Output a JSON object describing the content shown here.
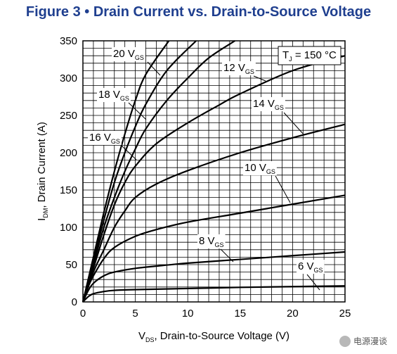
{
  "figure": {
    "title": "Figure 3 • Drain Current vs. Drain-to-Source Voltage",
    "watermark": "电源漫谈"
  },
  "chart_data": {
    "type": "line",
    "title": "Figure 3 • Drain Current vs. Drain-to-Source Voltage",
    "xlabel": {
      "main": "V",
      "sub": "DS",
      "rest": ", Drain-to-Source Voltage (V)"
    },
    "ylabel": {
      "main": "I",
      "sub": "DM",
      "rest": ", Drain Current (A)"
    },
    "xlim": [
      0,
      25
    ],
    "ylim": [
      0,
      350
    ],
    "xticks": [
      0,
      5,
      10,
      15,
      20,
      25
    ],
    "yticks": [
      0,
      50,
      100,
      150,
      200,
      250,
      300,
      350
    ],
    "grid": true,
    "annotation": {
      "main": "T",
      "sub": "J",
      "rest": " = 150 °C",
      "position": "top-right"
    },
    "series": [
      {
        "label": "6",
        "label_sub": "GS",
        "x": [
          0,
          0.5,
          1,
          2,
          3,
          5,
          10,
          15,
          20,
          25
        ],
        "y": [
          0,
          7,
          11,
          14,
          15.5,
          16.5,
          18,
          19.5,
          20.5,
          21.5
        ]
      },
      {
        "label": "8",
        "label_sub": "GS",
        "x": [
          0,
          0.5,
          1,
          2,
          3,
          5,
          7,
          10,
          15,
          20,
          25
        ],
        "y": [
          0,
          15,
          25,
          35,
          40,
          45,
          48,
          52,
          57,
          62,
          67
        ]
      },
      {
        "label": "10",
        "label_sub": "GS",
        "x": [
          0,
          0.5,
          1,
          2,
          3,
          5,
          7,
          10,
          15,
          20,
          25
        ],
        "y": [
          0,
          20,
          35,
          58,
          73,
          88,
          97,
          107,
          119,
          131,
          143
        ]
      },
      {
        "label": "12",
        "label_sub": "GS",
        "x": [
          0,
          1,
          2,
          3,
          4,
          5,
          7,
          10,
          15,
          20,
          25
        ],
        "y": [
          0,
          40,
          70,
          100,
          122,
          140,
          158,
          176,
          200,
          220,
          238
        ]
      },
      {
        "label": "14",
        "label_sub": "GS",
        "x": [
          0,
          1,
          2,
          3,
          4,
          5,
          7,
          10,
          13,
          15,
          20,
          25
        ],
        "y": [
          0,
          45,
          90,
          130,
          160,
          182,
          212,
          240,
          264,
          279,
          310,
          330
        ]
      },
      {
        "label": "16",
        "label_sub": "GS",
        "x": [
          0,
          1,
          2,
          3,
          4,
          5,
          6,
          8,
          10,
          12,
          14.5
        ],
        "y": [
          0,
          50,
          100,
          140,
          175,
          205,
          232,
          270,
          300,
          327,
          350
        ]
      },
      {
        "label": "18",
        "label_sub": "GS",
        "x": [
          0,
          1,
          2,
          3,
          4,
          5,
          6,
          8,
          10.8
        ],
        "y": [
          0,
          55,
          110,
          160,
          200,
          235,
          265,
          310,
          350
        ]
      },
      {
        "label": "20",
        "label_sub": "GS",
        "x": [
          0,
          1,
          2,
          3,
          4,
          5,
          6,
          8.2
        ],
        "y": [
          0,
          60,
          120,
          175,
          225,
          270,
          305,
          350
        ]
      }
    ]
  }
}
